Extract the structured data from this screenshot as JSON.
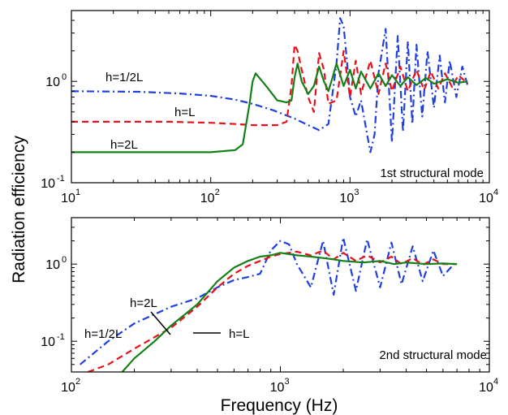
{
  "chart_data": {
    "ylabel": "Radiation efficiency",
    "xlabel": "Frequency (Hz)",
    "panels": [
      {
        "type": "line",
        "title": "1st structural mode",
        "xscale": "log",
        "yscale": "log",
        "xlim": [
          10,
          10000
        ],
        "ylim": [
          0.1,
          5
        ],
        "x_ticks": [
          {
            "base": "10",
            "exp": "1"
          },
          {
            "base": "10",
            "exp": "2"
          },
          {
            "base": "10",
            "exp": "3"
          },
          {
            "base": "10",
            "exp": "4"
          }
        ],
        "y_ticks": [
          {
            "base": "10",
            "exp": "-1"
          },
          {
            "base": "10",
            "exp": "0"
          }
        ],
        "series": [
          {
            "name": "h=1/2L",
            "color": "#1f3fe0",
            "dash": "dashdot",
            "x": [
              10,
              30,
              60,
              100,
              150,
              200,
              280,
              400,
              500,
              600,
              700,
              800,
              850,
              900,
              950,
              1000,
              1100,
              1200,
              1300,
              1400,
              1500,
              1600,
              1800,
              2000,
              2200,
              2400,
              2600,
              2800,
              3000,
              3300,
              3600,
              4000,
              4400,
              4800,
              5200,
              5800,
              6400,
              7000
            ],
            "y": [
              0.8,
              0.79,
              0.76,
              0.72,
              0.66,
              0.6,
              0.52,
              0.43,
              0.37,
              0.33,
              0.38,
              1.5,
              4.2,
              3.5,
              1.6,
              0.7,
              0.45,
              0.65,
              0.35,
              0.2,
              0.3,
              1.2,
              3.3,
              0.25,
              2.8,
              0.32,
              2.5,
              0.38,
              2.3,
              0.45,
              2.0,
              0.55,
              1.8,
              0.62,
              1.6,
              0.7,
              1.4,
              0.9
            ]
          },
          {
            "name": "h=L",
            "color": "#e8101a",
            "dash": "dashed",
            "x": [
              10,
              50,
              100,
              150,
              200,
              250,
              300,
              350,
              380,
              400,
              420,
              450,
              500,
              550,
              600,
              650,
              700,
              800,
              900,
              1000,
              1100,
              1200,
              1400,
              1600,
              1800,
              2000,
              2300,
              2600,
              3000,
              3400,
              3800,
              4300,
              4800,
              5400,
              6000,
              7000
            ],
            "y": [
              0.4,
              0.4,
              0.39,
              0.38,
              0.37,
              0.37,
              0.37,
              0.4,
              0.9,
              2.3,
              2.0,
              1.3,
              0.7,
              0.5,
              1.9,
              1.3,
              0.6,
              0.65,
              2.0,
              0.7,
              1.6,
              0.75,
              1.6,
              0.75,
              1.5,
              0.8,
              1.4,
              0.8,
              1.3,
              0.82,
              1.25,
              0.85,
              1.2,
              0.88,
              1.15,
              0.95
            ]
          },
          {
            "name": "h=2L",
            "color": "#138018",
            "dash": "solid",
            "x": [
              10,
              50,
              100,
              150,
              170,
              190,
              200,
              210,
              250,
              300,
              350,
              380,
              400,
              420,
              450,
              500,
              550,
              600,
              650,
              700,
              750,
              800,
              900,
              1000,
              1100,
              1200,
              1400,
              1600,
              1800,
              2000,
              2300,
              2600,
              3000,
              3500,
              4000,
              5000,
              6000,
              7000
            ],
            "y": [
              0.2,
              0.2,
              0.2,
              0.21,
              0.24,
              0.6,
              1.0,
              1.2,
              0.9,
              0.65,
              0.62,
              0.65,
              1.1,
              1.5,
              1.0,
              0.75,
              0.9,
              1.4,
              1.0,
              0.8,
              1.1,
              1.5,
              0.9,
              1.3,
              0.85,
              1.25,
              0.85,
              1.2,
              0.9,
              1.15,
              0.9,
              1.1,
              0.92,
              1.08,
              0.95,
              1.05,
              0.97,
              1.0
            ]
          }
        ]
      },
      {
        "type": "line",
        "title": "2nd structural mode",
        "xscale": "log",
        "yscale": "log",
        "xlim": [
          100,
          10000
        ],
        "ylim": [
          0.04,
          4
        ],
        "x_ticks": [
          {
            "base": "10",
            "exp": "2"
          },
          {
            "base": "10",
            "exp": "3"
          },
          {
            "base": "10",
            "exp": "4"
          }
        ],
        "y_ticks": [
          {
            "base": "10",
            "exp": "-1"
          },
          {
            "base": "10",
            "exp": "0"
          }
        ],
        "series": [
          {
            "name": "h=1/2L",
            "color": "#1f3fe0",
            "dash": "dashdot",
            "x": [
              110,
              150,
              200,
              300,
              400,
              500,
              600,
              700,
              800,
              900,
              1000,
              1100,
              1200,
              1400,
              1600,
              1800,
              2000,
              2300,
              2600,
              3000,
              3400,
              3800,
              4300,
              4800,
              5400,
              6000,
              7000
            ],
            "y": [
              0.05,
              0.1,
              0.17,
              0.28,
              0.36,
              0.5,
              0.62,
              0.68,
              0.75,
              1.5,
              2.0,
              1.8,
              1.0,
              0.5,
              2.0,
              0.4,
              2.2,
              0.45,
              2.1,
              0.5,
              1.9,
              0.55,
              1.7,
              0.6,
              1.5,
              0.7,
              1.1
            ]
          },
          {
            "name": "h=L",
            "color": "#e8101a",
            "dash": "dashed",
            "x": [
              120,
              150,
              200,
              300,
              400,
              500,
              600,
              700,
              800,
              900,
              1000,
              1200,
              1400,
              1600,
              1800,
              2000,
              2300,
              2600,
              3000,
              3400,
              3800,
              4300,
              4800,
              5400,
              6000,
              7000
            ],
            "y": [
              0.04,
              0.05,
              0.08,
              0.15,
              0.28,
              0.5,
              0.75,
              0.95,
              1.1,
              1.25,
              1.35,
              1.45,
              1.3,
              1.5,
              1.15,
              1.4,
              1.1,
              1.3,
              1.05,
              1.25,
              1.0,
              1.2,
              0.98,
              1.15,
              1.0,
              1.0
            ]
          },
          {
            "name": "h=2L",
            "color": "#138018",
            "dash": "solid",
            "x": [
              175,
              200,
              250,
              300,
              400,
              500,
              600,
              700,
              800,
              900,
              1000,
              1200,
              1400,
              1600,
              1800,
              2000,
              2500,
              3000,
              3500,
              4000,
              5000,
              6000,
              7000
            ],
            "y": [
              0.04,
              0.06,
              0.1,
              0.16,
              0.3,
              0.6,
              0.9,
              1.1,
              1.25,
              1.3,
              1.4,
              1.3,
              1.25,
              1.2,
              1.15,
              1.1,
              1.05,
              1.1,
              1.0,
              1.05,
              1.0,
              1.02,
              1.0
            ]
          }
        ]
      }
    ]
  }
}
